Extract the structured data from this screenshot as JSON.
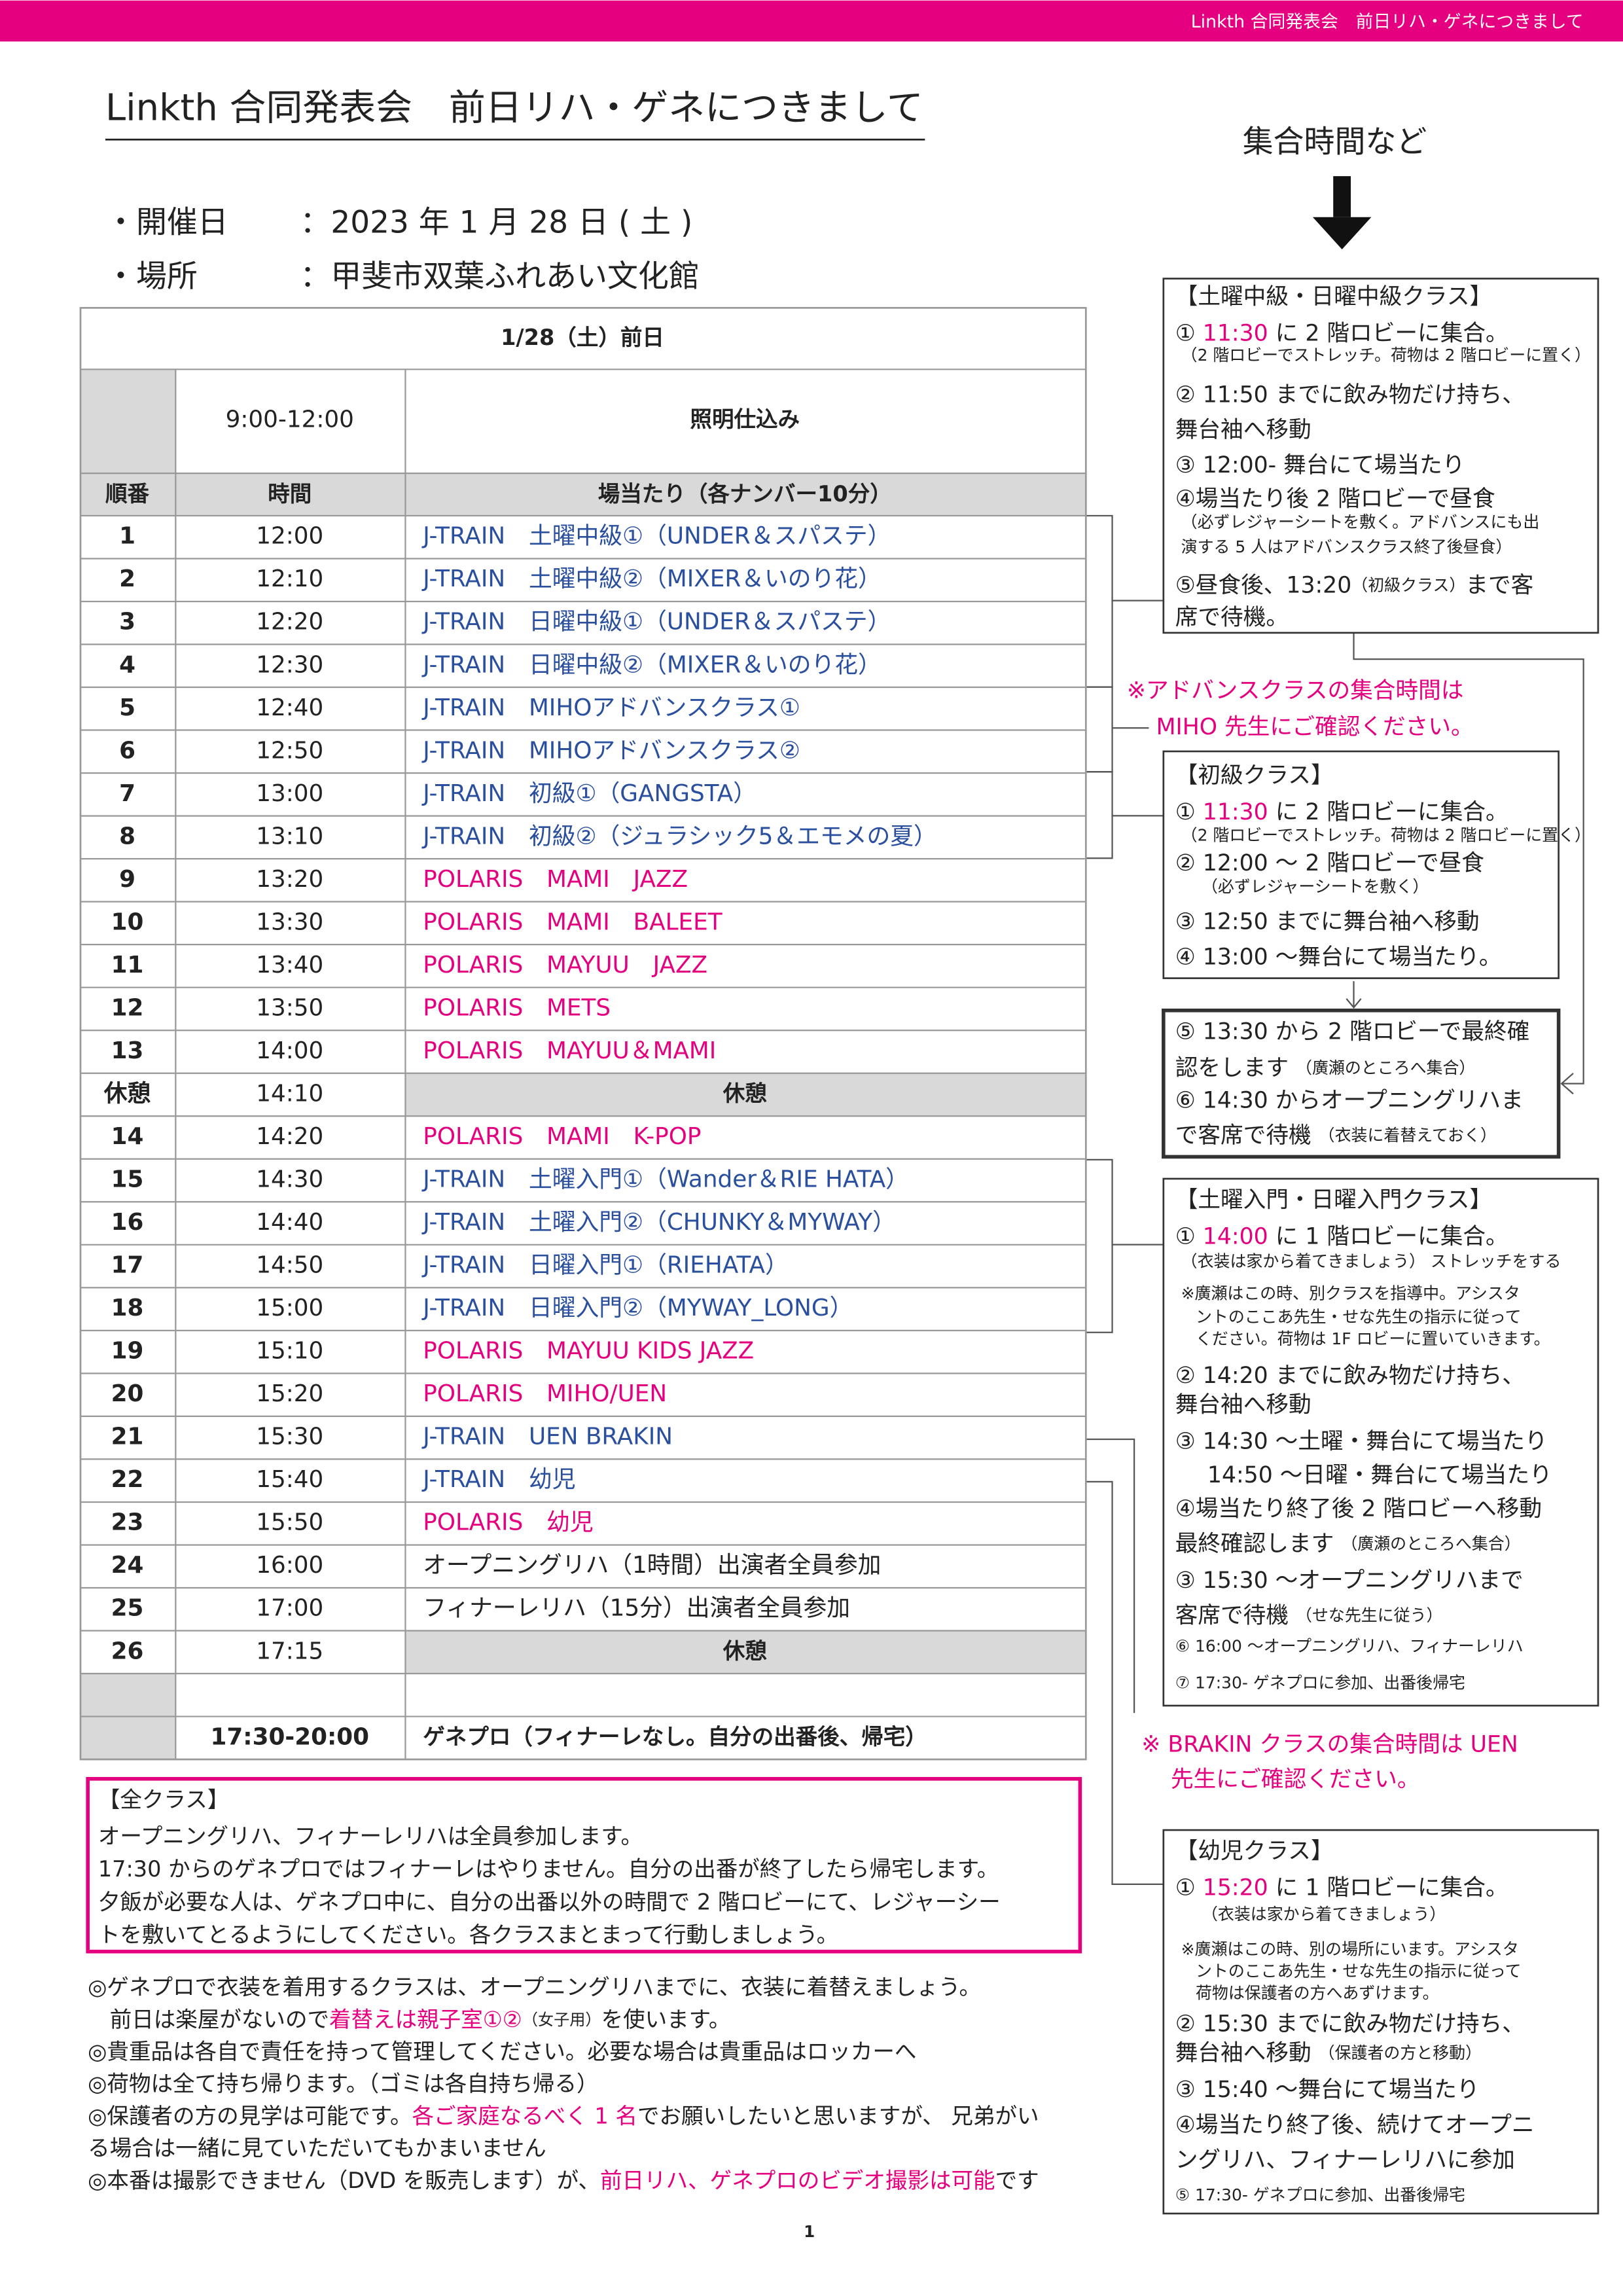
{
  "header_bar": "Linkth 合同発表会　前日リハ・ゲネにつきまして",
  "title": "Linkth 合同発表会　前日リハ・ゲネにつきまして",
  "info": [
    {
      "label": "・開催日",
      "value": "：2023 年 1 月 28 日 ( 土 )"
    },
    {
      "label": "・場所",
      "value": "：甲斐市双葉ふれあい文化館"
    }
  ],
  "table": {
    "date_header": "1/28（土）前日",
    "setup": {
      "time": "9:00-12:00",
      "text": "照明仕込み"
    },
    "columns": [
      "順番",
      "時間",
      "場当たり（各ナンバー10分）"
    ],
    "rows": [
      {
        "no": "1",
        "time": "12:00",
        "text": "J-TRAIN　土曜中級①（UNDER＆スパステ）",
        "color": "#2a4f9e"
      },
      {
        "no": "2",
        "time": "12:10",
        "text": "J-TRAIN　土曜中級②（MIXER＆いのり花）",
        "color": "#2a4f9e"
      },
      {
        "no": "3",
        "time": "12:20",
        "text": "J-TRAIN　日曜中級①（UNDER＆スパステ）",
        "color": "#2a4f9e"
      },
      {
        "no": "4",
        "time": "12:30",
        "text": "J-TRAIN　日曜中級②（MIXER＆いのり花）",
        "color": "#2a4f9e"
      },
      {
        "no": "5",
        "time": "12:40",
        "text": "J-TRAIN　MIHOアドバンスクラス①",
        "color": "#2a4f9e"
      },
      {
        "no": "6",
        "time": "12:50",
        "text": "J-TRAIN　MIHOアドバンスクラス②",
        "color": "#2a4f9e"
      },
      {
        "no": "7",
        "time": "13:00",
        "text": "J-TRAIN　初級①（GANGSTA）",
        "color": "#2a4f9e"
      },
      {
        "no": "8",
        "time": "13:10",
        "text": "J-TRAIN　初級②（ジュラシック5＆エモメの夏）",
        "color": "#2a4f9e"
      },
      {
        "no": "9",
        "time": "13:20",
        "text": "POLARIS　MAMI　JAZZ",
        "color": "#e4007f"
      },
      {
        "no": "10",
        "time": "13:30",
        "text": "POLARIS　MAMI　BALEET",
        "color": "#e4007f"
      },
      {
        "no": "11",
        "time": "13:40",
        "text": "POLARIS　MAYUU　JAZZ",
        "color": "#e4007f"
      },
      {
        "no": "12",
        "time": "13:50",
        "text": "POLARIS　METS",
        "color": "#e4007f"
      },
      {
        "no": "13",
        "time": "14:00",
        "text": "POLARIS　MAYUU＆MAMI",
        "color": "#e4007f"
      },
      {
        "no": "休憩",
        "time": "14:10",
        "text": "休憩",
        "shaded": true
      },
      {
        "no": "14",
        "time": "14:20",
        "text": "POLARIS　MAMI　K-POP",
        "color": "#e4007f"
      },
      {
        "no": "15",
        "time": "14:30",
        "text": "J-TRAIN　土曜入門①（Wander＆RIE HATA）",
        "color": "#2a4f9e"
      },
      {
        "no": "16",
        "time": "14:40",
        "text": "J-TRAIN　土曜入門②（CHUNKY＆MYWAY）",
        "color": "#2a4f9e"
      },
      {
        "no": "17",
        "time": "14:50",
        "text": "J-TRAIN　日曜入門①（RIEHATA）",
        "color": "#2a4f9e"
      },
      {
        "no": "18",
        "time": "15:00",
        "text": "J-TRAIN　日曜入門②（MYWAY_LONG）",
        "color": "#2a4f9e"
      },
      {
        "no": "19",
        "time": "15:10",
        "text": "POLARIS　MAYUU  KIDS JAZZ",
        "color": "#e4007f"
      },
      {
        "no": "20",
        "time": "15:20",
        "text": "POLARIS　MIHO/UEN",
        "color": "#e4007f"
      },
      {
        "no": "21",
        "time": "15:30",
        "text": "J-TRAIN　UEN BRAKIN",
        "color": "#2a4f9e"
      },
      {
        "no": "22",
        "time": "15:40",
        "text": "J-TRAIN　幼児",
        "color": "#2a4f9e"
      },
      {
        "no": "23",
        "time": "15:50",
        "text": "POLARIS　幼児",
        "color": "#e4007f"
      },
      {
        "no": "24",
        "time": "16:00",
        "text": "オープニングリハ（1時間）出演者全員参加",
        "color": "#222222"
      },
      {
        "no": "25",
        "time": "17:00",
        "text": "フィナーレリハ（15分）出演者全員参加",
        "color": "#222222"
      },
      {
        "no": "26",
        "time": "17:15",
        "text": "休憩",
        "shaded": true
      }
    ],
    "final": {
      "time": "17:30-20:00",
      "text": "ゲネプロ（フィナーレなし。自分の出番後、帰宅）"
    }
  },
  "all_classes": {
    "title": "【全クラス】",
    "lines": [
      "オープニングリハ、フィナーレリハは全員参加します。",
      "17:30 からのゲネプロではフィナーレはやりません。自分の出番が終了したら帰宅します。",
      "夕飯が必要な人は、ゲネプロ中に、自分の出番以外の時間で 2 階ロビーにて、レジャーシー",
      "トを敷いてとるようにしてください。各クラスまとまって行動しましょう。"
    ]
  },
  "notes": [
    [
      "◎ゲネプロで衣装を着用するクラスは、オープニングリハまでに、衣装に着替えましょう。"
    ],
    [
      "前日は楽屋がないので",
      {
        "text": "着替えは親子室①②",
        "color": "#e4007f"
      },
      {
        "text": "（女子用）",
        "small": true
      },
      "を使います。"
    ],
    [
      "◎貴重品は各自で責任を持って管理してください。必要な場合は貴重品はロッカーへ"
    ],
    [
      "◎荷物は全て持ち帰ります。（ゴミは各自持ち帰る）"
    ],
    [
      "◎保護者の方の見学は可能です。",
      {
        "text": "各ご家庭なるべく 1 名",
        "color": "#e4007f"
      },
      "でお願いしたいと思いますが、 兄弟がい"
    ],
    [
      "る場合は一緒に見ていただいてもかまいません"
    ],
    [
      "◎本番は撮影できません（DVD を販売します）が、",
      {
        "text": "前日リハ、ゲネプロのビデオ撮影は可能",
        "color": "#e4007f"
      },
      "です"
    ]
  ],
  "page_number": "1",
  "side": {
    "heading": "集合時間など",
    "boxes": [
      [
        [
          "【土曜中級・日曜中級クラス】"
        ],
        [
          "① ",
          {
            "text": "11:30",
            "color": "#e4007f"
          },
          " に 2 階ロビーに集合。"
        ],
        [
          {
            "text": "（2 階ロビーでストレッチ。荷物は 2 階ロビーに置く）",
            "small": true
          }
        ],
        [
          "② 11:50 までに飲み物だけ持ち、"
        ],
        [
          "舞台袖へ移動"
        ],
        [
          "③ 12:00- 舞台にて場当たり"
        ],
        [
          "④場当たり後 2 階ロビーで昼食"
        ],
        [
          {
            "text": "（必ずレジャーシートを敷く。アドバンスにも出",
            "small": true
          }
        ],
        [
          {
            "text": "演する 5 人はアドバンスクラス終了後昼食）",
            "small": true
          }
        ],
        [
          "⑤昼食後、13:20",
          {
            "text": "（初級クラス）",
            "small": true
          },
          "まで客"
        ],
        [
          "席で待機。"
        ]
      ],
      [
        [
          "【初級クラス】"
        ],
        [
          "① ",
          {
            "text": "11:30",
            "color": "#e4007f"
          },
          " に 2 階ロビーに集合。"
        ],
        [
          {
            "text": "（2 階ロビーでストレッチ。荷物は 2 階ロビーに置く）",
            "small": true
          }
        ],
        [
          "② 12:00 ～ 2 階ロビーで昼食"
        ],
        [
          {
            "text": "（必ずレジャーシートを敷く）",
            "small": true
          }
        ],
        [
          "③ 12:50 までに舞台袖へ移動"
        ],
        [
          "④ 13:00 ～舞台にて場当たり。"
        ]
      ],
      [
        [
          "⑤ 13:30 から 2 階ロビーで最終確"
        ],
        [
          "認をします ",
          {
            "text": "（廣瀬のところへ集合）",
            "small": true
          }
        ],
        [
          "⑥ 14:30 からオープニングリハま"
        ],
        [
          "で客席で待機 ",
          {
            "text": "（衣装に着替えておく）",
            "small": true
          }
        ]
      ],
      [
        [
          "【土曜入門・日曜入門クラス】"
        ],
        [
          "① ",
          {
            "text": "14:00",
            "color": "#e4007f"
          },
          " に 1 階ロビーに集合。"
        ],
        [
          {
            "text": "（衣装は家から着てきましょう） ストレッチをする",
            "small": true
          }
        ],
        [
          {
            "text": "※廣瀬はこの時、別クラスを指導中。アシスタ",
            "small": true
          }
        ],
        [
          {
            "text": "ントのここあ先生・せな先生の指示に従って",
            "small": true
          }
        ],
        [
          {
            "text": "ください。荷物は 1F ロビーに置いていきます。",
            "small": true
          }
        ],
        [
          "② 14:20 までに飲み物だけ持ち、"
        ],
        [
          "舞台袖へ移動"
        ],
        [
          "③ 14:30 ～土曜・舞台にて場当たり"
        ],
        [
          "14:50 ～日曜・舞台にて場当たり"
        ],
        [
          "④場当たり終了後 2 階ロビーへ移動"
        ],
        [
          "最終確認します ",
          {
            "text": "（廣瀬のところへ集合）",
            "small": true
          }
        ],
        [
          "③ 15:30 ～オープニングリハまで"
        ],
        [
          "客席で待機 ",
          {
            "text": "（せな先生に従う）",
            "small": true
          }
        ],
        [
          {
            "text": "⑥ 16:00 ～オープニングリハ、フィナーレリハ",
            "small": true
          }
        ],
        [
          {
            "text": "⑦ 17:30- ゲネプロに参加、出番後帰宅",
            "small": true
          }
        ]
      ],
      [
        [
          "【幼児クラス】"
        ],
        [
          "① ",
          {
            "text": "15:20",
            "color": "#e4007f"
          },
          " に 1 階ロビーに集合。"
        ],
        [
          {
            "text": "（衣装は家から着てきましょう）",
            "small": true
          }
        ],
        [
          {
            "text": "※廣瀬はこの時、別の場所にいます。アシスタ",
            "small": true
          }
        ],
        [
          {
            "text": "ントのここあ先生・せな先生の指示に従って",
            "small": true
          }
        ],
        [
          {
            "text": "荷物は保護者の方へあずけます。",
            "small": true
          }
        ],
        [
          "② 15:30 までに飲み物だけ持ち、"
        ],
        [
          "舞台袖へ移動 ",
          {
            "text": "（保護者の方と移動）",
            "small": true
          }
        ],
        [
          "③ 15:40 ～舞台にて場当たり"
        ],
        [
          "④場当たり終了後、続けてオープニ"
        ],
        [
          "ングリハ、フィナーレリハに参加"
        ],
        [
          {
            "text": "⑤ 17:30- ゲネプロに参加、出番後帰宅",
            "small": true
          }
        ]
      ]
    ],
    "callouts": [
      [
        "※アドバンスクラスの集合時間は",
        "MIHO 先生にご確認ください。"
      ],
      [
        "※ BRAKIN クラスの集合時間は UEN",
        "先生にご確認ください。"
      ]
    ]
  }
}
